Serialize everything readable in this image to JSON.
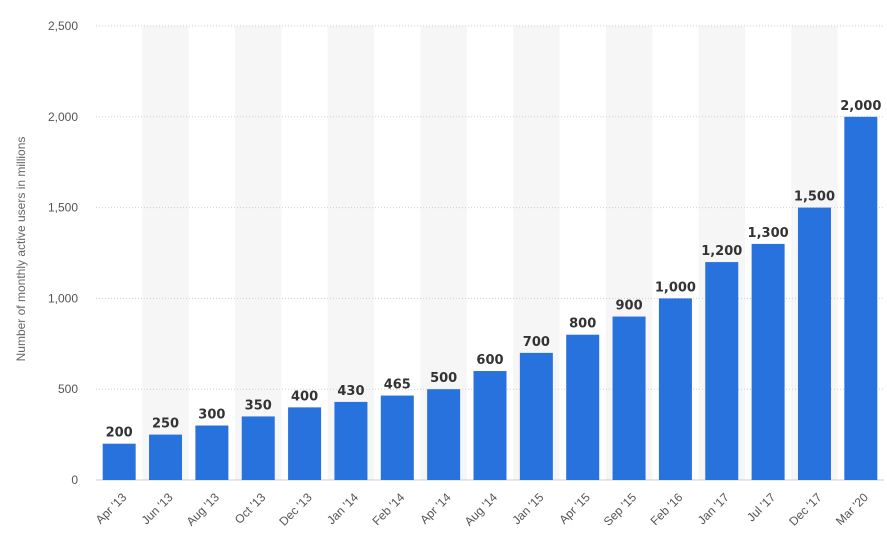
{
  "chart_data": {
    "type": "bar",
    "title": "",
    "xlabel": "",
    "ylabel": "Number of monthly active users in millions",
    "categories": [
      "Apr '13",
      "Jun '13",
      "Aug '13",
      "Oct '13",
      "Dec '13",
      "Jan '14",
      "Feb '14",
      "Apr '14",
      "Aug '14",
      "Jan '15",
      "Apr '15",
      "Sep '15",
      "Feb '16",
      "Jan '17",
      "Jul '17",
      "Dec '17",
      "Mar '20"
    ],
    "values": [
      200,
      250,
      300,
      350,
      400,
      430,
      465,
      500,
      600,
      700,
      800,
      900,
      1000,
      1200,
      1300,
      1500,
      2000
    ],
    "value_labels": [
      "200",
      "250",
      "300",
      "350",
      "400",
      "430",
      "465",
      "500",
      "600",
      "700",
      "800",
      "900",
      "1,000",
      "1,200",
      "1,300",
      "1,500",
      "2,000"
    ],
    "ylim": [
      0,
      2500
    ],
    "yticks": [
      0,
      500,
      1000,
      1500,
      2000,
      2500
    ],
    "ytick_labels": [
      "0",
      "500",
      "1,000",
      "1,500",
      "2,000",
      "2,500"
    ],
    "grid": true,
    "legend": false,
    "colors": {
      "bar": "#2872dd",
      "band": "#f6f6f6",
      "grid": "#cfcfcf",
      "baseline": "#cccccc"
    }
  }
}
